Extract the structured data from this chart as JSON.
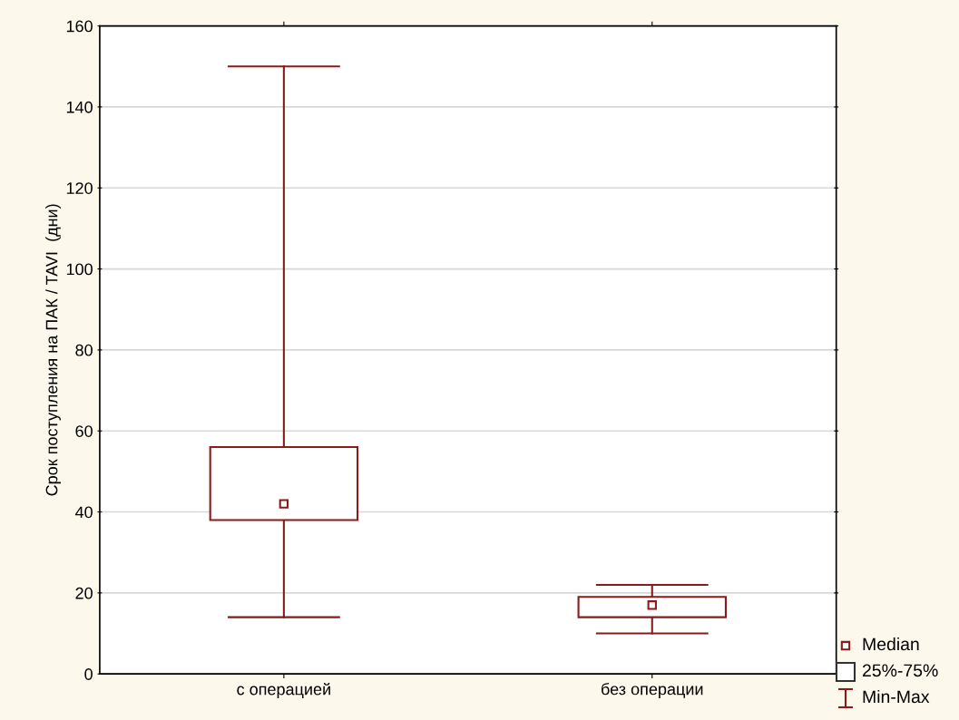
{
  "chart_data": {
    "type": "box",
    "ylabel": "Срок поступления на ПАК / TAVI  (дни)",
    "categories": [
      "с операцией",
      "без операции"
    ],
    "boxes": [
      {
        "low": 14,
        "q1": 38,
        "median": 42,
        "q3": 56,
        "high": 150
      },
      {
        "low": 10,
        "q1": 14,
        "median": 17,
        "q3": 19,
        "high": 22
      }
    ],
    "color": "#8b1a1a",
    "ylim": [
      0,
      160
    ],
    "yticks": [
      0,
      20,
      40,
      60,
      80,
      100,
      120,
      140,
      160
    ],
    "grid": "y",
    "annotations": [
      "Median",
      "25%-75%",
      "Min-Max"
    ]
  }
}
